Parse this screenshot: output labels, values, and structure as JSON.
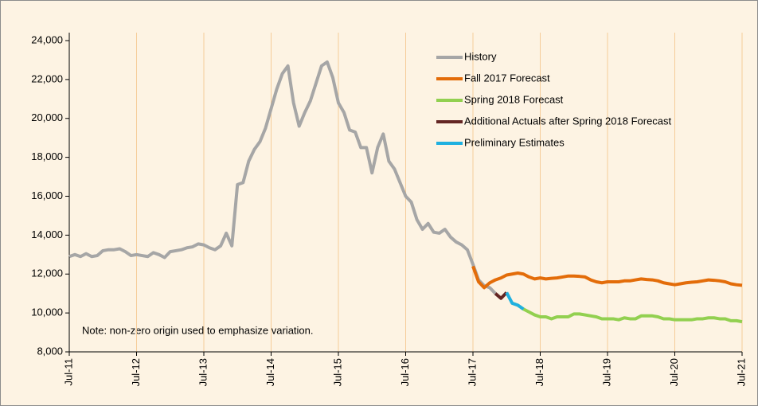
{
  "chart_data": {
    "type": "line",
    "note": "Note: non-zero origin used to emphasize variation.",
    "categories": [
      "Jul-11",
      null,
      null,
      null,
      null,
      null,
      null,
      null,
      null,
      null,
      null,
      null,
      "Jul-12",
      null,
      null,
      null,
      null,
      null,
      null,
      null,
      null,
      null,
      null,
      null,
      "Jul-13",
      null,
      null,
      null,
      null,
      null,
      null,
      null,
      null,
      null,
      null,
      null,
      "Jul-14",
      null,
      null,
      null,
      null,
      null,
      null,
      null,
      null,
      null,
      null,
      null,
      "Jul-15",
      null,
      null,
      null,
      null,
      null,
      null,
      null,
      null,
      null,
      null,
      null,
      "Jul-16",
      null,
      null,
      null,
      null,
      null,
      null,
      null,
      null,
      null,
      null,
      null,
      "Jul-17",
      null,
      null,
      null,
      null,
      null,
      null,
      null,
      null,
      null,
      null,
      null,
      "Jul-18",
      null,
      null,
      null,
      null,
      null,
      null,
      null,
      null,
      null,
      null,
      null,
      "Jul-19",
      null,
      null,
      null,
      null,
      null,
      null,
      null,
      null,
      null,
      null,
      null,
      "Jul-20",
      null,
      null,
      null,
      null,
      null,
      null,
      null,
      null,
      null,
      null,
      null,
      "Jul-21"
    ],
    "series": [
      {
        "name": "History",
        "color": "#a6a6a6",
        "values": [
          12900,
          13000,
          12900,
          13050,
          12900,
          12950,
          13200,
          13250,
          13250,
          13300,
          13150,
          12950,
          13000,
          12950,
          12900,
          13100,
          13000,
          12850,
          13150,
          13200,
          13250,
          13350,
          13400,
          13550,
          13500,
          13350,
          13250,
          13450,
          14100,
          13450,
          16600,
          16700,
          17800,
          18400,
          18800,
          19500,
          20500,
          21500,
          22300,
          22700,
          20800,
          19600,
          20300,
          20900,
          21800,
          22700,
          22900,
          22100,
          20800,
          20300,
          19400,
          19300,
          18500,
          18500,
          17200,
          18500,
          19200,
          17800,
          17400,
          16700,
          16000,
          15700,
          14800,
          14300,
          14600,
          14150,
          14100,
          14300,
          13900,
          13650,
          13500,
          13250,
          12500,
          11700,
          11400,
          11300,
          11000,
          null,
          null,
          null,
          null,
          null,
          null,
          null,
          null,
          null,
          null,
          null,
          null,
          null,
          null,
          null,
          null,
          null,
          null,
          null,
          null,
          null,
          null,
          null,
          null,
          null,
          null,
          null,
          null,
          null,
          null,
          null,
          null,
          null,
          null,
          null,
          null,
          null,
          null,
          null,
          null,
          null,
          null,
          null,
          null
        ]
      },
      {
        "name": "Fall 2017 Forecast",
        "color": "#e36c09",
        "values": [
          null,
          null,
          null,
          null,
          null,
          null,
          null,
          null,
          null,
          null,
          null,
          null,
          null,
          null,
          null,
          null,
          null,
          null,
          null,
          null,
          null,
          null,
          null,
          null,
          null,
          null,
          null,
          null,
          null,
          null,
          null,
          null,
          null,
          null,
          null,
          null,
          null,
          null,
          null,
          null,
          null,
          null,
          null,
          null,
          null,
          null,
          null,
          null,
          null,
          null,
          null,
          null,
          null,
          null,
          null,
          null,
          null,
          null,
          null,
          null,
          null,
          null,
          null,
          null,
          null,
          null,
          null,
          null,
          null,
          null,
          null,
          null,
          12400,
          11600,
          11300,
          11550,
          11700,
          11800,
          11950,
          12000,
          12050,
          12000,
          11850,
          11750,
          11800,
          11750,
          11780,
          11800,
          11850,
          11900,
          11900,
          11880,
          11850,
          11700,
          11600,
          11550,
          11600,
          11600,
          11600,
          11650,
          11650,
          11700,
          11750,
          11720,
          11700,
          11650,
          11550,
          11500,
          11450,
          11500,
          11550,
          11580,
          11600,
          11650,
          11700,
          11680,
          11650,
          11600,
          11500,
          11450,
          11420
        ]
      },
      {
        "name": "Spring 2018 Forecast",
        "color": "#92d050",
        "values": [
          null,
          null,
          null,
          null,
          null,
          null,
          null,
          null,
          null,
          null,
          null,
          null,
          null,
          null,
          null,
          null,
          null,
          null,
          null,
          null,
          null,
          null,
          null,
          null,
          null,
          null,
          null,
          null,
          null,
          null,
          null,
          null,
          null,
          null,
          null,
          null,
          null,
          null,
          null,
          null,
          null,
          null,
          null,
          null,
          null,
          null,
          null,
          null,
          null,
          null,
          null,
          null,
          null,
          null,
          null,
          null,
          null,
          null,
          null,
          null,
          null,
          null,
          null,
          null,
          null,
          null,
          null,
          null,
          null,
          null,
          null,
          null,
          null,
          null,
          null,
          null,
          null,
          null,
          null,
          10500,
          10400,
          10200,
          10050,
          9900,
          9800,
          9800,
          9700,
          9800,
          9800,
          9800,
          9950,
          9950,
          9900,
          9850,
          9800,
          9700,
          9700,
          9700,
          9650,
          9750,
          9700,
          9700,
          9850,
          9850,
          9850,
          9800,
          9700,
          9700,
          9650,
          9650,
          9650,
          9650,
          9700,
          9700,
          9750,
          9750,
          9700,
          9700,
          9600,
          9600,
          9550
        ]
      },
      {
        "name": "Additional Actuals after Spring 2018 Forecast",
        "color": "#632523",
        "values": [
          null,
          null,
          null,
          null,
          null,
          null,
          null,
          null,
          null,
          null,
          null,
          null,
          null,
          null,
          null,
          null,
          null,
          null,
          null,
          null,
          null,
          null,
          null,
          null,
          null,
          null,
          null,
          null,
          null,
          null,
          null,
          null,
          null,
          null,
          null,
          null,
          null,
          null,
          null,
          null,
          null,
          null,
          null,
          null,
          null,
          null,
          null,
          null,
          null,
          null,
          null,
          null,
          null,
          null,
          null,
          null,
          null,
          null,
          null,
          null,
          null,
          null,
          null,
          null,
          null,
          null,
          null,
          null,
          null,
          null,
          null,
          null,
          null,
          null,
          null,
          null,
          11000,
          10750,
          11050,
          null,
          null,
          null,
          null,
          null,
          null,
          null,
          null,
          null,
          null,
          null,
          null,
          null,
          null,
          null,
          null,
          null,
          null,
          null,
          null,
          null,
          null,
          null,
          null,
          null,
          null,
          null,
          null,
          null,
          null,
          null,
          null,
          null,
          null,
          null,
          null,
          null,
          null,
          null,
          null,
          null,
          null
        ]
      },
      {
        "name": "Preliminary Estimates",
        "color": "#1fb0e0",
        "values": [
          null,
          null,
          null,
          null,
          null,
          null,
          null,
          null,
          null,
          null,
          null,
          null,
          null,
          null,
          null,
          null,
          null,
          null,
          null,
          null,
          null,
          null,
          null,
          null,
          null,
          null,
          null,
          null,
          null,
          null,
          null,
          null,
          null,
          null,
          null,
          null,
          null,
          null,
          null,
          null,
          null,
          null,
          null,
          null,
          null,
          null,
          null,
          null,
          null,
          null,
          null,
          null,
          null,
          null,
          null,
          null,
          null,
          null,
          null,
          null,
          null,
          null,
          null,
          null,
          null,
          null,
          null,
          null,
          null,
          null,
          null,
          null,
          null,
          null,
          null,
          null,
          null,
          null,
          11050,
          10500,
          10400,
          10200,
          null,
          null,
          null,
          null,
          null,
          null,
          null,
          null,
          null,
          null,
          null,
          null,
          null,
          null,
          null,
          null,
          null,
          null,
          null,
          null,
          null,
          null,
          null,
          null,
          null,
          null,
          null,
          null,
          null,
          null,
          null,
          null,
          null,
          null,
          null,
          null,
          null,
          null,
          null
        ]
      }
    ],
    "ylim": [
      8000,
      24000
    ],
    "yticks": [
      {
        "value": 8000,
        "label": "8,000"
      },
      {
        "value": 10000,
        "label": "10,000"
      },
      {
        "value": 12000,
        "label": "12,000"
      },
      {
        "value": 14000,
        "label": "14,000"
      },
      {
        "value": 16000,
        "label": "16,000"
      },
      {
        "value": 18000,
        "label": "18,000"
      },
      {
        "value": 20000,
        "label": "20,000"
      },
      {
        "value": 22000,
        "label": "22,000"
      },
      {
        "value": 24000,
        "label": "24,000"
      }
    ],
    "xgrid": true,
    "legend": "top-right"
  }
}
